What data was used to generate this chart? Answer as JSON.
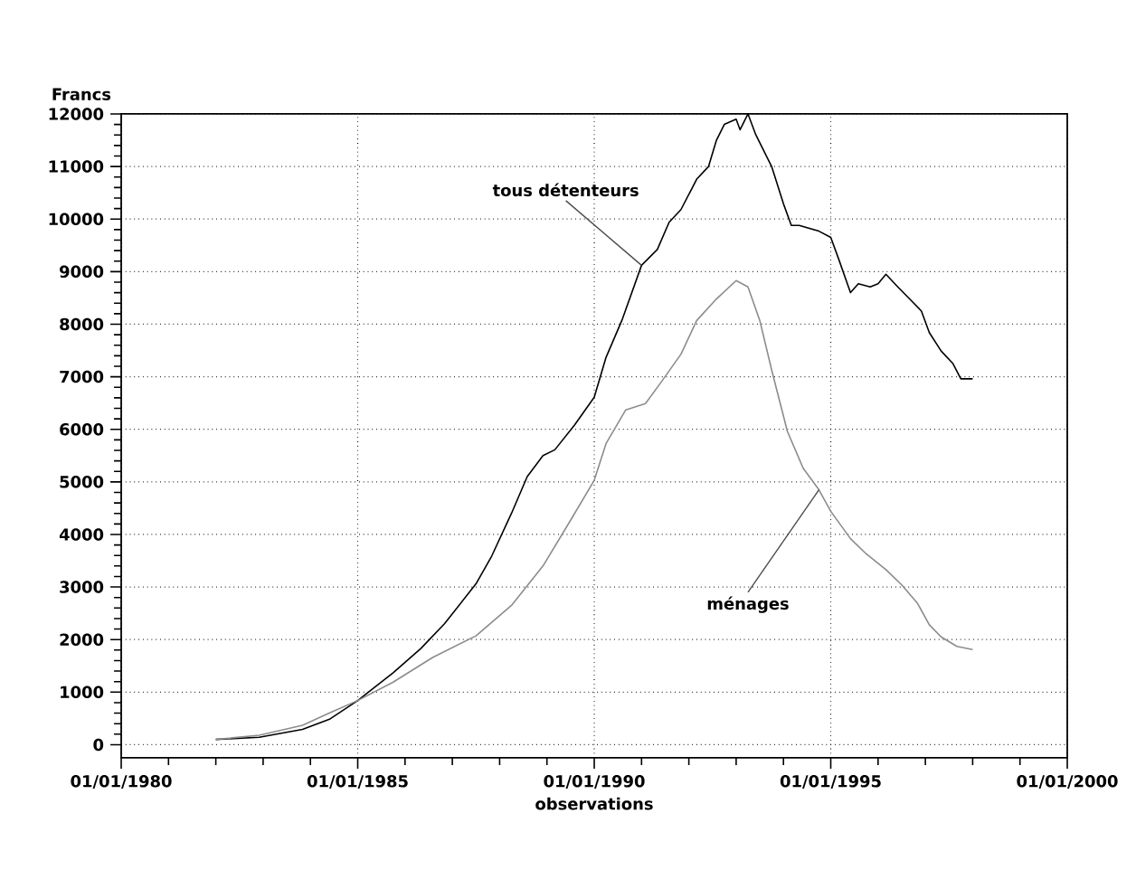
{
  "chart_data": {
    "type": "line",
    "xlabel": "observations",
    "ylabel": "Francs",
    "xlim": [
      "1980-01-01",
      "2000-01-01"
    ],
    "xticks": [
      {
        "value": "1980-01-01",
        "label": "01/01/1980"
      },
      {
        "value": "1985-01-01",
        "label": "01/01/1985"
      },
      {
        "value": "1990-01-01",
        "label": "01/01/1990"
      },
      {
        "value": "1995-01-01",
        "label": "01/01/1995"
      },
      {
        "value": "2000-01-01",
        "label": "01/01/2000"
      }
    ],
    "ylim": [
      -250,
      12000
    ],
    "yticks": [
      0,
      1000,
      2000,
      3000,
      4000,
      5000,
      6000,
      7000,
      8000,
      9000,
      10000,
      11000,
      12000
    ],
    "grid": true,
    "marker": "none",
    "line_style": "solid",
    "series": [
      {
        "color": "#000000",
        "x": [
          "1982-01",
          "1982-12",
          "1983-11",
          "1984-06",
          "1985-01",
          "1985-10",
          "1986-05",
          "1986-11",
          "1987-07",
          "1987-11",
          "1988-04",
          "1988-08",
          "1988-12",
          "1989-03",
          "1989-08",
          "1990-01",
          "1990-04",
          "1990-08",
          "1991-01",
          "1991-05",
          "1991-08",
          "1991-11",
          "1992-03",
          "1992-06",
          "1992-08",
          "1992-10",
          "1993-01",
          "1993-02",
          "1993-04",
          "1993-06",
          "1993-10",
          "1994-01",
          "1994-03",
          "1994-05",
          "1994-10",
          "1995-01",
          "1995-03",
          "1995-06",
          "1995-08",
          "1995-11",
          "1996-01",
          "1996-03",
          "1996-06",
          "1996-09",
          "1996-12",
          "1997-02",
          "1997-05",
          "1997-08",
          "1997-10",
          "1998-01"
        ],
        "values": [
          100,
          140,
          290,
          490,
          840,
          1370,
          1830,
          2300,
          3060,
          3590,
          4400,
          5100,
          5500,
          5610,
          6080,
          6610,
          7370,
          8070,
          9120,
          9420,
          9940,
          10180,
          10760,
          11000,
          11500,
          11800,
          11900,
          11700,
          12000,
          11600,
          11000,
          10290,
          9880,
          9880,
          9770,
          9650,
          9240,
          8600,
          8770,
          8710,
          8770,
          8950,
          8710,
          8480,
          8250,
          7840,
          7490,
          7250,
          6960,
          6960
        ]
      },
      {
        "color": "#8c8c8c",
        "x": [
          "1982-01",
          "1982-12",
          "1983-11",
          "1984-06",
          "1985-01",
          "1985-10",
          "1986-08",
          "1987-07",
          "1988-04",
          "1988-12",
          "1989-07",
          "1990-01",
          "1990-04",
          "1990-09",
          "1991-02",
          "1991-06",
          "1991-11",
          "1992-03",
          "1992-08",
          "1993-01",
          "1993-04",
          "1993-07",
          "1993-10",
          "1994-02",
          "1994-06",
          "1994-10",
          "1995-01",
          "1995-06",
          "1995-10",
          "1996-03",
          "1996-07",
          "1996-11",
          "1997-02",
          "1997-05",
          "1997-09",
          "1998-01"
        ],
        "values": [
          100,
          180,
          370,
          610,
          840,
          1190,
          1660,
          2070,
          2650,
          3400,
          4270,
          5030,
          5730,
          6370,
          6490,
          6900,
          7430,
          8070,
          8480,
          8830,
          8710,
          8070,
          7130,
          5960,
          5260,
          4850,
          4440,
          3920,
          3630,
          3330,
          3040,
          2690,
          2280,
          2050,
          1870,
          1810
        ]
      }
    ],
    "annotations": [
      {
        "text": "tous détenteurs",
        "x": "1991-01",
        "y": 9120
      },
      {
        "text": "ménages",
        "x": "1994-10",
        "y": 4850
      }
    ]
  }
}
